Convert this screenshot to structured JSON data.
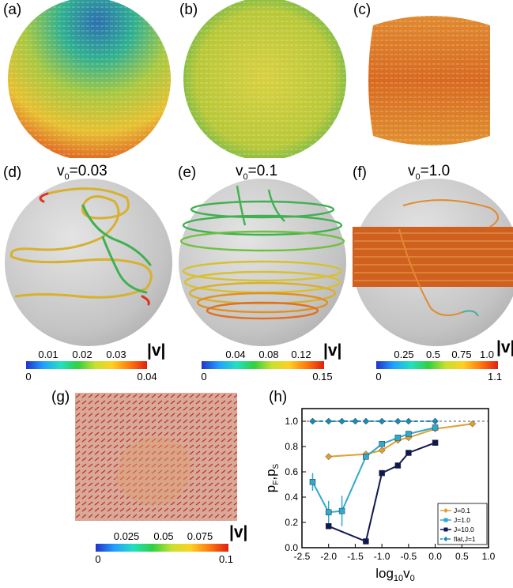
{
  "panels": {
    "a": "(a)",
    "b": "(b)",
    "c": "(c)",
    "d": "(d)",
    "e": "(e)",
    "f": "(f)",
    "g": "(g)",
    "h": "(h)"
  },
  "velocity_titles": {
    "d": "0.03",
    "e": "0.1",
    "f": "1.0"
  },
  "velocity_symbol": "v",
  "velocity_sub": "0",
  "colorbars": [
    {
      "name": "d",
      "ticks": [
        "0.01",
        "0.02",
        "0.03"
      ],
      "min": "0",
      "max": "0.04",
      "title": "|v|"
    },
    {
      "name": "e",
      "ticks": [
        "0.04",
        "0.08",
        "0.12"
      ],
      "min": "0",
      "max": "0.15",
      "title": "|v|"
    },
    {
      "name": "f",
      "ticks": [
        "0.25",
        "0.5",
        "0.75",
        "1.0"
      ],
      "min": "0",
      "max": "1.1",
      "title": "|v|"
    },
    {
      "name": "g",
      "ticks": [
        "0.025",
        "0.05",
        "0.075"
      ],
      "min": "0",
      "max": "0.1",
      "title": "|v|"
    }
  ],
  "colors": {
    "sphere": "#c8c8c8",
    "orange": "#e0a030",
    "teal": "#30a8d0",
    "navy": "#101850",
    "dashed": "#1a8ab8"
  },
  "chart_data": {
    "type": "line",
    "ylabel": "p_F,p_S",
    "xlabel": "log10v0",
    "xlim": [
      -2.5,
      1.0
    ],
    "ylim": [
      0.0,
      1.1
    ],
    "xticks": [
      "-2.5",
      "-2.0",
      "-1.5",
      "-1.0",
      "-0.5",
      "0.0",
      "0.5",
      "1.0"
    ],
    "yticks": [
      "0.0",
      "0.2",
      "0.4",
      "0.6",
      "0.8",
      "1.0"
    ],
    "legend_position": "bottom-right",
    "series": [
      {
        "name": "J=0.1",
        "color": "#e0a030",
        "marker": "diamond",
        "x": [
          -2.0,
          -1.3,
          -1.0,
          -0.7,
          -0.5,
          0.0,
          0.7
        ],
        "y": [
          0.72,
          0.74,
          0.77,
          0.85,
          0.87,
          0.94,
          0.98
        ]
      },
      {
        "name": "J=1.0",
        "color": "#30a8d0",
        "marker": "square",
        "x": [
          -2.3,
          -2.0,
          -1.75,
          -1.3,
          -1.0,
          -0.7,
          -0.5,
          0.0
        ],
        "y": [
          0.52,
          0.28,
          0.29,
          0.72,
          0.82,
          0.87,
          0.9,
          0.95
        ]
      },
      {
        "name": "J=10.0",
        "color": "#101850",
        "marker": "square",
        "x": [
          -2.0,
          -1.3,
          -1.0,
          -0.7,
          -0.5,
          0.0
        ],
        "y": [
          0.17,
          0.05,
          0.59,
          0.65,
          0.75,
          0.83
        ]
      },
      {
        "name": "flat,J=1",
        "color": "#1a8ab8",
        "marker": "diamond",
        "dashed": true,
        "x": [
          -2.3,
          -2.0,
          -1.75,
          -1.5,
          -1.3,
          -1.0,
          -0.7,
          -0.5,
          0.0
        ],
        "y": [
          1.0,
          1.0,
          1.0,
          1.0,
          1.0,
          1.0,
          1.0,
          1.0,
          1.0
        ]
      }
    ],
    "errorbars": {
      "series": "J=1.0",
      "x": [
        -2.3,
        -2.0,
        -1.75
      ],
      "err": [
        0.07,
        0.09,
        0.12
      ]
    }
  }
}
